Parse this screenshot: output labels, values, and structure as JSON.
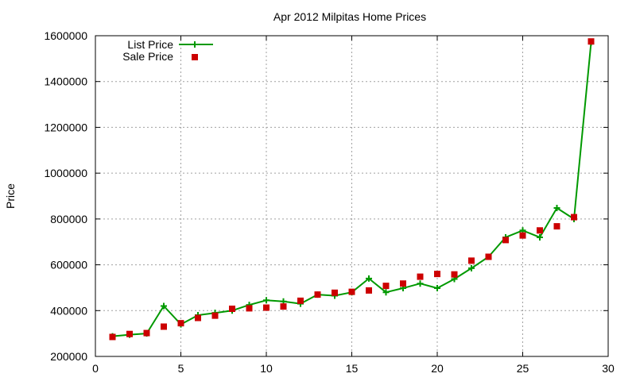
{
  "chart_data": {
    "type": "line",
    "title": "Apr 2012 Milpitas Home Prices",
    "xlabel": "",
    "ylabel": "Price",
    "xlim": [
      0,
      30
    ],
    "ylim": [
      200000,
      1600000
    ],
    "xticks": [
      0,
      5,
      10,
      15,
      20,
      25,
      30
    ],
    "yticks": [
      200000,
      400000,
      600000,
      800000,
      1000000,
      1200000,
      1400000,
      1600000
    ],
    "grid": true,
    "legend_position": "top-left",
    "series": [
      {
        "name": "List Price",
        "style": "line-with-plus-markers",
        "color": "#009900",
        "x": [
          1,
          2,
          3,
          4,
          5,
          6,
          7,
          8,
          9,
          10,
          11,
          12,
          13,
          14,
          15,
          16,
          17,
          18,
          19,
          20,
          21,
          22,
          23,
          24,
          25,
          26,
          27,
          28,
          29
        ],
        "values": [
          288000,
          295000,
          300000,
          420000,
          340000,
          380000,
          390000,
          400000,
          425000,
          445000,
          440000,
          430000,
          470000,
          465000,
          480000,
          540000,
          480000,
          498000,
          518000,
          498000,
          538000,
          585000,
          635000,
          720000,
          750000,
          720000,
          848000,
          800000,
          1570000
        ]
      },
      {
        "name": "Sale Price",
        "style": "square-markers",
        "color": "#cc0000",
        "x": [
          1,
          2,
          3,
          4,
          5,
          6,
          7,
          8,
          9,
          10,
          11,
          12,
          13,
          14,
          15,
          16,
          17,
          18,
          19,
          20,
          21,
          22,
          23,
          24,
          25,
          26,
          27,
          28,
          29
        ],
        "values": [
          285000,
          298000,
          302000,
          330000,
          345000,
          368000,
          378000,
          408000,
          410000,
          413000,
          418000,
          443000,
          470000,
          478000,
          482000,
          488000,
          508000,
          518000,
          548000,
          560000,
          558000,
          618000,
          635000,
          708000,
          728000,
          750000,
          768000,
          808000,
          1575000
        ]
      }
    ]
  }
}
